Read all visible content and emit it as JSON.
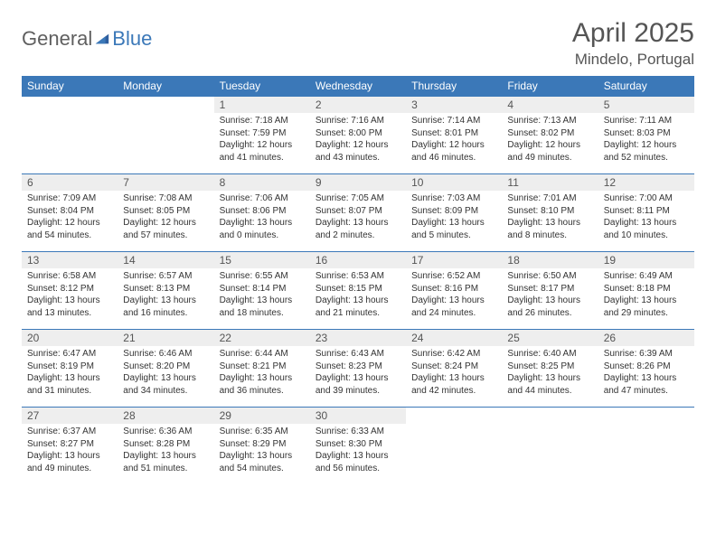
{
  "brand": {
    "part1": "General",
    "part2": "Blue"
  },
  "title": "April 2025",
  "location": "Mindelo, Portugal",
  "colors": {
    "header_bg": "#3b78b8",
    "header_text": "#ffffff",
    "daynum_bg": "#eeeeee",
    "border": "#3b78b8",
    "text": "#333333",
    "title_text": "#555555"
  },
  "dayNames": [
    "Sunday",
    "Monday",
    "Tuesday",
    "Wednesday",
    "Thursday",
    "Friday",
    "Saturday"
  ],
  "weeks": [
    [
      null,
      null,
      {
        "n": "1",
        "sr": "7:18 AM",
        "ss": "7:59 PM",
        "dl": "12 hours and 41 minutes."
      },
      {
        "n": "2",
        "sr": "7:16 AM",
        "ss": "8:00 PM",
        "dl": "12 hours and 43 minutes."
      },
      {
        "n": "3",
        "sr": "7:14 AM",
        "ss": "8:01 PM",
        "dl": "12 hours and 46 minutes."
      },
      {
        "n": "4",
        "sr": "7:13 AM",
        "ss": "8:02 PM",
        "dl": "12 hours and 49 minutes."
      },
      {
        "n": "5",
        "sr": "7:11 AM",
        "ss": "8:03 PM",
        "dl": "12 hours and 52 minutes."
      }
    ],
    [
      {
        "n": "6",
        "sr": "7:09 AM",
        "ss": "8:04 PM",
        "dl": "12 hours and 54 minutes."
      },
      {
        "n": "7",
        "sr": "7:08 AM",
        "ss": "8:05 PM",
        "dl": "12 hours and 57 minutes."
      },
      {
        "n": "8",
        "sr": "7:06 AM",
        "ss": "8:06 PM",
        "dl": "13 hours and 0 minutes."
      },
      {
        "n": "9",
        "sr": "7:05 AM",
        "ss": "8:07 PM",
        "dl": "13 hours and 2 minutes."
      },
      {
        "n": "10",
        "sr": "7:03 AM",
        "ss": "8:09 PM",
        "dl": "13 hours and 5 minutes."
      },
      {
        "n": "11",
        "sr": "7:01 AM",
        "ss": "8:10 PM",
        "dl": "13 hours and 8 minutes."
      },
      {
        "n": "12",
        "sr": "7:00 AM",
        "ss": "8:11 PM",
        "dl": "13 hours and 10 minutes."
      }
    ],
    [
      {
        "n": "13",
        "sr": "6:58 AM",
        "ss": "8:12 PM",
        "dl": "13 hours and 13 minutes."
      },
      {
        "n": "14",
        "sr": "6:57 AM",
        "ss": "8:13 PM",
        "dl": "13 hours and 16 minutes."
      },
      {
        "n": "15",
        "sr": "6:55 AM",
        "ss": "8:14 PM",
        "dl": "13 hours and 18 minutes."
      },
      {
        "n": "16",
        "sr": "6:53 AM",
        "ss": "8:15 PM",
        "dl": "13 hours and 21 minutes."
      },
      {
        "n": "17",
        "sr": "6:52 AM",
        "ss": "8:16 PM",
        "dl": "13 hours and 24 minutes."
      },
      {
        "n": "18",
        "sr": "6:50 AM",
        "ss": "8:17 PM",
        "dl": "13 hours and 26 minutes."
      },
      {
        "n": "19",
        "sr": "6:49 AM",
        "ss": "8:18 PM",
        "dl": "13 hours and 29 minutes."
      }
    ],
    [
      {
        "n": "20",
        "sr": "6:47 AM",
        "ss": "8:19 PM",
        "dl": "13 hours and 31 minutes."
      },
      {
        "n": "21",
        "sr": "6:46 AM",
        "ss": "8:20 PM",
        "dl": "13 hours and 34 minutes."
      },
      {
        "n": "22",
        "sr": "6:44 AM",
        "ss": "8:21 PM",
        "dl": "13 hours and 36 minutes."
      },
      {
        "n": "23",
        "sr": "6:43 AM",
        "ss": "8:23 PM",
        "dl": "13 hours and 39 minutes."
      },
      {
        "n": "24",
        "sr": "6:42 AM",
        "ss": "8:24 PM",
        "dl": "13 hours and 42 minutes."
      },
      {
        "n": "25",
        "sr": "6:40 AM",
        "ss": "8:25 PM",
        "dl": "13 hours and 44 minutes."
      },
      {
        "n": "26",
        "sr": "6:39 AM",
        "ss": "8:26 PM",
        "dl": "13 hours and 47 minutes."
      }
    ],
    [
      {
        "n": "27",
        "sr": "6:37 AM",
        "ss": "8:27 PM",
        "dl": "13 hours and 49 minutes."
      },
      {
        "n": "28",
        "sr": "6:36 AM",
        "ss": "8:28 PM",
        "dl": "13 hours and 51 minutes."
      },
      {
        "n": "29",
        "sr": "6:35 AM",
        "ss": "8:29 PM",
        "dl": "13 hours and 54 minutes."
      },
      {
        "n": "30",
        "sr": "6:33 AM",
        "ss": "8:30 PM",
        "dl": "13 hours and 56 minutes."
      },
      null,
      null,
      null
    ]
  ],
  "labels": {
    "sunrise": "Sunrise:",
    "sunset": "Sunset:",
    "daylight": "Daylight:"
  }
}
